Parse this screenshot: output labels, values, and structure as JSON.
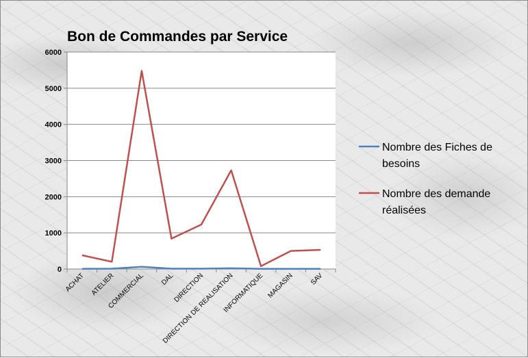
{
  "chart_data": {
    "type": "line",
    "title": "Bon de Commandes par Service",
    "categories": [
      "ACHAT",
      "ATELIER",
      "COMMERCIAL",
      "DAL",
      "DIRECTION",
      "DIRECTION DE REALISATION",
      "INFORMATIQUE",
      "MAGASIN",
      "SAV"
    ],
    "ylim": [
      0,
      6000
    ],
    "yticks": [
      0,
      1000,
      2000,
      3000,
      4000,
      5000,
      6000
    ],
    "grid": true,
    "legend_position": "right",
    "series": [
      {
        "name": "Nombre des Fiches de besoins",
        "legend_lines": [
          "Nombre des Fiches de",
          "besoins"
        ],
        "color": "#4f81bd",
        "values": [
          5,
          10,
          60,
          10,
          10,
          20,
          5,
          5,
          5
        ]
      },
      {
        "name": "Nombre des demande réalisées",
        "legend_lines": [
          "Nombre des demande",
          "réalisées"
        ],
        "color": "#c0504d",
        "values": [
          380,
          200,
          5480,
          840,
          1230,
          2730,
          80,
          500,
          530
        ]
      }
    ]
  }
}
